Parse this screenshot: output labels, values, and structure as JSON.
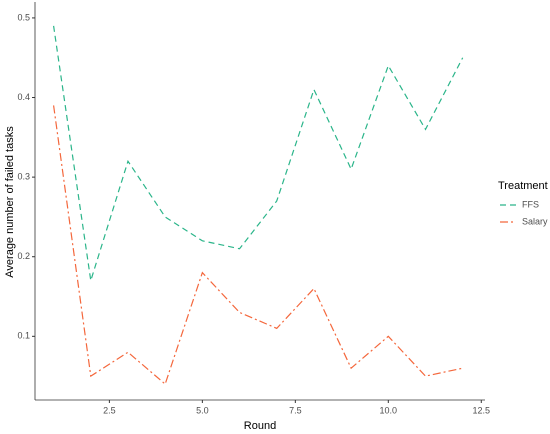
{
  "chart_data": {
    "type": "line",
    "x_label": "Round",
    "y_label": "Average number of failed tasks",
    "x": [
      1,
      2,
      3,
      4,
      5,
      6,
      7,
      8,
      9,
      10,
      11,
      12
    ],
    "series": [
      {
        "name": "FFS",
        "color": "#2bb58a",
        "dash": "dashed",
        "values": [
          0.49,
          0.17,
          0.32,
          0.25,
          0.22,
          0.21,
          0.27,
          0.41,
          0.31,
          0.44,
          0.36,
          0.45
        ]
      },
      {
        "name": "Salary",
        "color": "#f4673c",
        "dash": "dashdot",
        "values": [
          0.39,
          0.05,
          0.08,
          0.04,
          0.18,
          0.13,
          0.11,
          0.16,
          0.06,
          0.1,
          0.05,
          0.06
        ]
      }
    ],
    "xlim": [
      0.5,
      12.6
    ],
    "ylim": [
      0.02,
      0.52
    ],
    "xticks": [
      2.5,
      {
        "value": 5,
        "label": "5.0"
      },
      7.5,
      {
        "value": 10,
        "label": "10.0"
      },
      12.5
    ],
    "yticks": [
      0.1,
      0.2,
      0.3,
      0.4,
      0.5
    ],
    "legend_title": "Treatment",
    "legend": "right",
    "grid": false
  }
}
